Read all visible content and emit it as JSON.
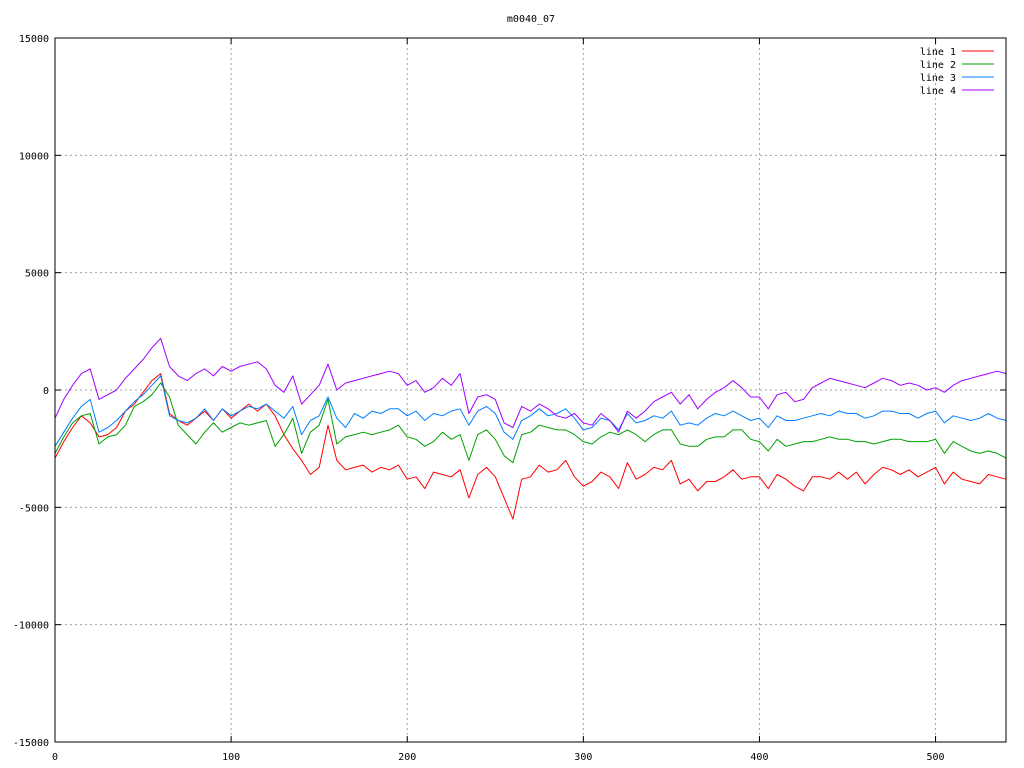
{
  "chart_data": {
    "type": "line",
    "title": "m0040_07",
    "xlabel": "",
    "ylabel": "",
    "xlim": [
      0,
      540
    ],
    "ylim": [
      -15000,
      15000
    ],
    "x_ticks": [
      0,
      100,
      200,
      300,
      400,
      500
    ],
    "y_ticks": [
      -15000,
      -10000,
      -5000,
      0,
      5000,
      10000,
      15000
    ],
    "grid": true,
    "legend_position": "top-right",
    "x": [
      0,
      5,
      10,
      15,
      20,
      25,
      30,
      35,
      40,
      45,
      50,
      55,
      60,
      65,
      70,
      75,
      80,
      85,
      90,
      95,
      100,
      105,
      110,
      115,
      120,
      125,
      130,
      135,
      140,
      145,
      150,
      155,
      160,
      165,
      170,
      175,
      180,
      185,
      190,
      195,
      200,
      205,
      210,
      215,
      220,
      225,
      230,
      235,
      240,
      245,
      250,
      255,
      260,
      265,
      270,
      275,
      280,
      285,
      290,
      295,
      300,
      305,
      310,
      315,
      320,
      325,
      330,
      335,
      340,
      345,
      350,
      355,
      360,
      365,
      370,
      375,
      380,
      385,
      390,
      395,
      400,
      405,
      410,
      415,
      420,
      425,
      430,
      435,
      440,
      445,
      450,
      455,
      460,
      465,
      470,
      475,
      480,
      485,
      490,
      495,
      500,
      505,
      510,
      515,
      520,
      525,
      530,
      535,
      540
    ],
    "series": [
      {
        "name": "line 1",
        "color": "#ff0000",
        "values": [
          -2900,
          -2200,
          -1600,
          -1100,
          -1400,
          -2000,
          -1900,
          -1600,
          -900,
          -600,
          -100,
          400,
          700,
          -1000,
          -1300,
          -1500,
          -1200,
          -900,
          -1300,
          -800,
          -1200,
          -900,
          -600,
          -900,
          -600,
          -1100,
          -1900,
          -2500,
          -3000,
          -3600,
          -3300,
          -1500,
          -3000,
          -3400,
          -3300,
          -3200,
          -3500,
          -3300,
          -3400,
          -3200,
          -3800,
          -3700,
          -4200,
          -3500,
          -3600,
          -3700,
          -3400,
          -4600,
          -3600,
          -3300,
          -3700,
          -4600,
          -5500,
          -3800,
          -3700,
          -3200,
          -3500,
          -3400,
          -3000,
          -3700,
          -4100,
          -3900,
          -3500,
          -3700,
          -4200,
          -3100,
          -3800,
          -3600,
          -3300,
          -3400,
          -3000,
          -4000,
          -3800,
          -4300,
          -3900,
          -3900,
          -3700,
          -3400,
          -3800,
          -3700,
          -3700,
          -4200,
          -3600,
          -3800,
          -4100,
          -4300,
          -3700,
          -3700,
          -3800,
          -3500,
          -3800,
          -3500,
          -4000,
          -3600,
          -3300,
          -3400,
          -3600,
          -3400,
          -3700,
          -3500,
          -3300,
          -4000,
          -3500,
          -3800,
          -3900,
          -4000,
          -3600,
          -3700,
          -3800
        ]
      },
      {
        "name": "line 2",
        "color": "#00a000",
        "values": [
          -2700,
          -2000,
          -1400,
          -1100,
          -1000,
          -2300,
          -2000,
          -1900,
          -1500,
          -700,
          -500,
          -200,
          300,
          -300,
          -1500,
          -1900,
          -2300,
          -1800,
          -1400,
          -1800,
          -1600,
          -1400,
          -1500,
          -1400,
          -1300,
          -2400,
          -1900,
          -1200,
          -2700,
          -1800,
          -1500,
          -400,
          -2300,
          -2000,
          -1900,
          -1800,
          -1900,
          -1800,
          -1700,
          -1500,
          -2000,
          -2100,
          -2400,
          -2200,
          -1800,
          -2100,
          -1900,
          -3000,
          -1900,
          -1700,
          -2100,
          -2800,
          -3100,
          -1900,
          -1800,
          -1500,
          -1600,
          -1700,
          -1700,
          -1900,
          -2200,
          -2300,
          -2000,
          -1800,
          -1900,
          -1700,
          -1900,
          -2200,
          -1900,
          -1700,
          -1700,
          -2300,
          -2400,
          -2400,
          -2100,
          -2000,
          -2000,
          -1700,
          -1700,
          -2100,
          -2200,
          -2600,
          -2100,
          -2400,
          -2300,
          -2200,
          -2200,
          -2100,
          -2000,
          -2100,
          -2100,
          -2200,
          -2200,
          -2300,
          -2200,
          -2100,
          -2100,
          -2200,
          -2200,
          -2200,
          -2100,
          -2700,
          -2200,
          -2400,
          -2600,
          -2700,
          -2600,
          -2700,
          -2900
        ]
      },
      {
        "name": "line 3",
        "color": "#0080ff",
        "values": [
          -2400,
          -1800,
          -1200,
          -700,
          -400,
          -1800,
          -1600,
          -1300,
          -900,
          -500,
          -200,
          200,
          600,
          -1100,
          -1300,
          -1400,
          -1200,
          -800,
          -1300,
          -800,
          -1100,
          -900,
          -700,
          -800,
          -600,
          -900,
          -1200,
          -700,
          -1900,
          -1300,
          -1100,
          -300,
          -1200,
          -1600,
          -1000,
          -1200,
          -900,
          -1000,
          -800,
          -800,
          -1100,
          -900,
          -1300,
          -1000,
          -1100,
          -900,
          -800,
          -1500,
          -900,
          -700,
          -1000,
          -1800,
          -2100,
          -1300,
          -1100,
          -800,
          -1100,
          -1000,
          -800,
          -1200,
          -1700,
          -1600,
          -1200,
          -1300,
          -1700,
          -1000,
          -1400,
          -1300,
          -1100,
          -1200,
          -900,
          -1500,
          -1400,
          -1500,
          -1200,
          -1000,
          -1100,
          -900,
          -1100,
          -1300,
          -1200,
          -1600,
          -1100,
          -1300,
          -1300,
          -1200,
          -1100,
          -1000,
          -1100,
          -900,
          -1000,
          -1000,
          -1200,
          -1100,
          -900,
          -900,
          -1000,
          -1000,
          -1200,
          -1000,
          -900,
          -1400,
          -1100,
          -1200,
          -1300,
          -1200,
          -1000,
          -1200,
          -1300
        ]
      },
      {
        "name": "line 4",
        "color": "#a000ff",
        "values": [
          -1200,
          -400,
          200,
          700,
          900,
          -400,
          -200,
          0,
          500,
          900,
          1300,
          1800,
          2200,
          1000,
          600,
          400,
          700,
          900,
          600,
          1000,
          800,
          1000,
          1100,
          1200,
          900,
          200,
          -100,
          600,
          -600,
          -200,
          200,
          1100,
          0,
          300,
          400,
          500,
          600,
          700,
          800,
          700,
          200,
          400,
          -100,
          100,
          500,
          200,
          700,
          -1000,
          -300,
          -200,
          -400,
          -1400,
          -1600,
          -700,
          -900,
          -600,
          -800,
          -1100,
          -1200,
          -1000,
          -1400,
          -1500,
          -1000,
          -1300,
          -1800,
          -900,
          -1200,
          -900,
          -500,
          -300,
          -100,
          -600,
          -200,
          -800,
          -400,
          -100,
          100,
          400,
          100,
          -300,
          -300,
          -800,
          -200,
          -100,
          -500,
          -400,
          100,
          300,
          500,
          400,
          300,
          200,
          100,
          300,
          500,
          400,
          200,
          300,
          200,
          0,
          100,
          -100,
          200,
          400,
          500,
          600,
          700,
          800,
          700
        ]
      }
    ]
  }
}
